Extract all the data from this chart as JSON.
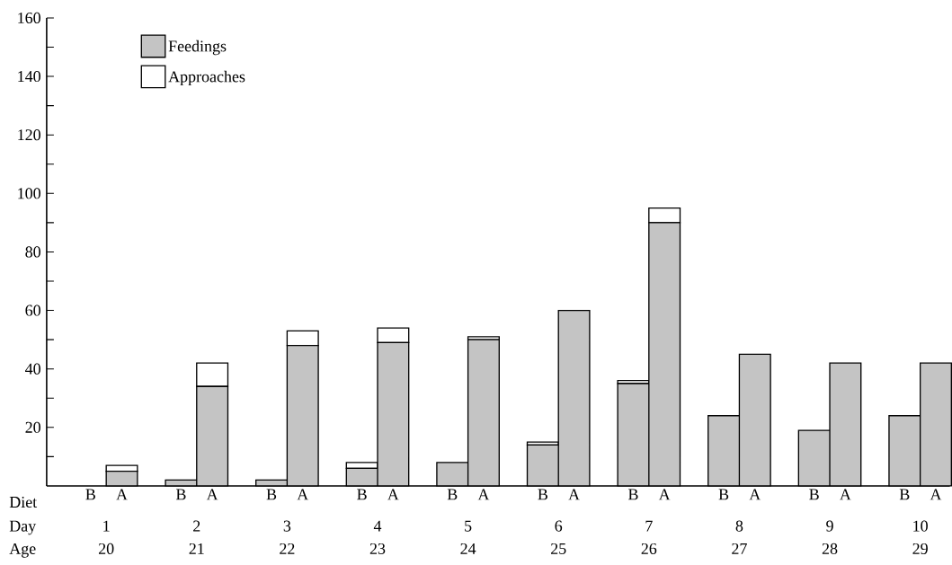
{
  "chart_data": {
    "type": "bar",
    "stacked": true,
    "categories": [
      "B",
      "A",
      "B",
      "A",
      "B",
      "A",
      "B",
      "A",
      "B",
      "A",
      "B",
      "A",
      "B",
      "A",
      "B",
      "A",
      "B",
      "A",
      "B",
      "A"
    ],
    "series": [
      {
        "name": "Feedings",
        "color": "#c4c4c4",
        "values": [
          0,
          5,
          2,
          34,
          2,
          48,
          6,
          49,
          8,
          50,
          14,
          60,
          35,
          90,
          24,
          45,
          19,
          42,
          24,
          42
        ]
      },
      {
        "name": "Approaches",
        "color": "#ffffff",
        "values": [
          0,
          2,
          0,
          8,
          0,
          5,
          2,
          5,
          0,
          1,
          1,
          0,
          1,
          5,
          0,
          0,
          0,
          0,
          0,
          0
        ]
      }
    ],
    "ylim": [
      0,
      160
    ],
    "yticks": [
      {
        "value": 10,
        "label": null
      },
      20,
      {
        "value": 30,
        "label": null
      },
      40,
      {
        "value": 50,
        "label": null
      },
      60,
      {
        "value": 70,
        "label": null
      },
      80,
      {
        "value": 90,
        "label": null
      },
      100,
      {
        "value": 110,
        "label": null
      },
      120,
      {
        "value": 130,
        "label": null
      },
      140,
      {
        "value": 150,
        "label": null
      },
      160
    ],
    "annotations": [
      "Diet",
      "Day",
      "Age",
      "1",
      "2",
      "3",
      "4",
      "5",
      "6",
      "7",
      "8",
      "9",
      "10",
      "20",
      "21",
      "22",
      "23",
      "24",
      "25",
      "26",
      "27",
      "28",
      "29"
    ],
    "legend": "top left",
    "grid": false
  }
}
